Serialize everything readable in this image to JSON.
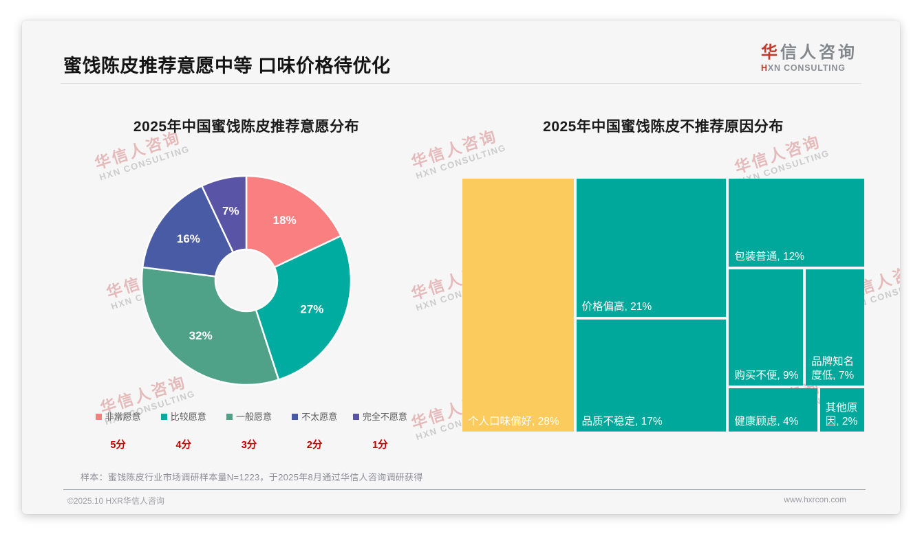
{
  "page": {
    "title": "蜜饯陈皮推荐意愿中等 口味价格待优化",
    "logo": {
      "name_first": "华",
      "name_rest": "信人咨询",
      "tagline_first": "H",
      "tagline_rest": "XN CONSULTING"
    },
    "watermark": {
      "line1": "华信人咨询",
      "line2": "HXN CONSULTING"
    },
    "footnote": "样本：蜜饯陈皮行业市场调研样本量N=1223，于2025年8月通过华信人咨询调研获得",
    "footer": {
      "copyright": "©2025.10 HXR华信人咨询",
      "website": "www.hxrcon.com"
    }
  },
  "chart_data": [
    {
      "type": "pie",
      "donut": true,
      "title": "2025年中国蜜饯陈皮推荐意愿分布",
      "label_format": "percent",
      "legend_position": "bottom",
      "segments": [
        {
          "label": "非常愿意",
          "score": "5分",
          "value": 18,
          "color": "#F97F80"
        },
        {
          "label": "比较愿意",
          "score": "4分",
          "value": 27,
          "color": "#00ACA0"
        },
        {
          "label": "一般愿意",
          "score": "3分",
          "value": 32,
          "color": "#4FA287"
        },
        {
          "label": "不太愿意",
          "score": "2分",
          "value": 16,
          "color": "#4A5BA5"
        },
        {
          "label": "完全不愿意",
          "score": "1分",
          "value": 7,
          "color": "#5A54A6"
        }
      ]
    },
    {
      "type": "treemap",
      "title": "2025年中国蜜饯陈皮不推荐原因分布",
      "items": [
        {
          "label": "个人口味偏好",
          "value": 28,
          "color": "#FBCB5D"
        },
        {
          "label": "价格偏高",
          "value": 21,
          "color": "#00A89B"
        },
        {
          "label": "品质不稳定",
          "value": 17,
          "color": "#00A89B"
        },
        {
          "label": "包装普通",
          "value": 12,
          "color": "#00A89B"
        },
        {
          "label": "购买不便",
          "value": 9,
          "color": "#00A89B"
        },
        {
          "label": "品牌知名度低",
          "value": 7,
          "color": "#00A89B"
        },
        {
          "label": "健康顾虑",
          "value": 4,
          "color": "#00A89B"
        },
        {
          "label": "其他原因",
          "value": 2,
          "color": "#00A89B"
        }
      ]
    }
  ]
}
